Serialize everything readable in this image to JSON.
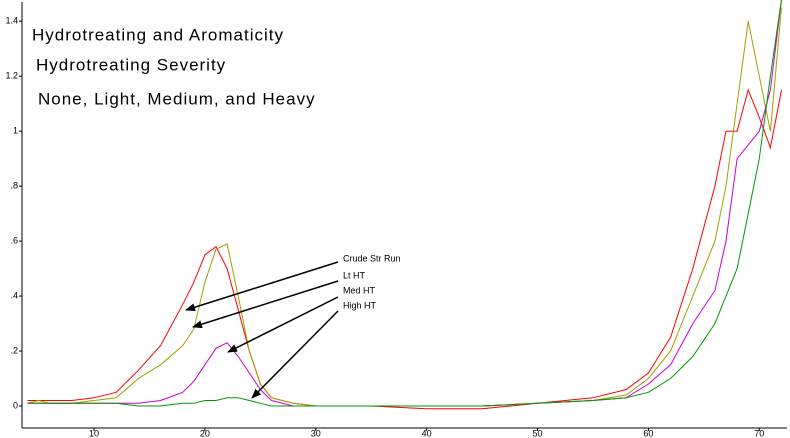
{
  "chart_data": {
    "type": "line",
    "title_lines": [
      "Hydrotreating and Aromaticity",
      "Hydrotreating Severity",
      "None, Light, Medium, and Heavy"
    ],
    "annotations": [
      "Crude Str Run",
      "Lt HT",
      "Med HT",
      "High HT"
    ],
    "x": [
      4,
      5,
      6,
      8,
      10,
      12,
      14,
      16,
      18,
      19,
      20,
      21,
      22,
      23,
      24,
      25,
      26,
      28,
      30,
      35,
      40,
      45,
      50,
      55,
      58,
      60,
      62,
      64,
      66,
      67,
      68,
      69,
      70,
      71,
      72
    ],
    "series": [
      {
        "name": "Crude Str Run",
        "color": "#ff0000",
        "values": [
          0.02,
          0.02,
          0.02,
          0.02,
          0.03,
          0.05,
          0.13,
          0.22,
          0.37,
          0.45,
          0.55,
          0.58,
          0.5,
          0.35,
          0.2,
          0.08,
          0.03,
          0.01,
          0,
          0,
          -0.01,
          -0.01,
          0.01,
          0.03,
          0.06,
          0.12,
          0.25,
          0.5,
          0.8,
          1.0,
          1.0,
          1.15,
          1.05,
          0.94,
          1.15
        ]
      },
      {
        "name": "Lt HT",
        "color": "#a0a000",
        "values": [
          0.01,
          0.02,
          0.01,
          0.01,
          0.02,
          0.03,
          0.1,
          0.15,
          0.22,
          0.28,
          0.45,
          0.57,
          0.59,
          0.4,
          0.2,
          0.08,
          0.03,
          0.01,
          0,
          0,
          0,
          0,
          0.01,
          0.02,
          0.04,
          0.1,
          0.2,
          0.4,
          0.6,
          0.8,
          1.1,
          1.4,
          1.2,
          1.0,
          1.45
        ]
      },
      {
        "name": "Med HT",
        "color": "#cc00cc",
        "values": [
          0.01,
          0.01,
          0.01,
          0.01,
          0.01,
          0.01,
          0.01,
          0.02,
          0.05,
          0.09,
          0.15,
          0.21,
          0.23,
          0.18,
          0.12,
          0.06,
          0.02,
          0,
          0,
          0,
          0,
          0,
          0.01,
          0.02,
          0.03,
          0.08,
          0.15,
          0.3,
          0.42,
          0.6,
          0.9,
          0.95,
          1.0,
          1.15,
          1.48
        ]
      },
      {
        "name": "High HT",
        "color": "#009900",
        "values": [
          0.01,
          0.01,
          0.01,
          0.01,
          0.01,
          0.01,
          0,
          0,
          0.01,
          0.01,
          0.02,
          0.02,
          0.03,
          0.03,
          0.02,
          0.01,
          0,
          0,
          0,
          0,
          0,
          0,
          0.01,
          0.02,
          0.03,
          0.05,
          0.1,
          0.18,
          0.3,
          0.4,
          0.5,
          0.7,
          0.9,
          1.2,
          1.48
        ]
      }
    ],
    "xlim": [
      3.5,
      72.5
    ],
    "ylim": [
      -0.08,
      1.47
    ],
    "xticks": [
      10,
      20,
      30,
      40,
      50,
      60,
      70
    ],
    "yticks": [
      0,
      {
        "value": 0.2,
        "label": ".2"
      },
      {
        "value": 0.4,
        "label": ".4"
      },
      {
        "value": 0.6,
        "label": ".6"
      },
      {
        "value": 0.8,
        "label": ".8"
      },
      1,
      1.2,
      1.4
    ],
    "grid": false
  }
}
